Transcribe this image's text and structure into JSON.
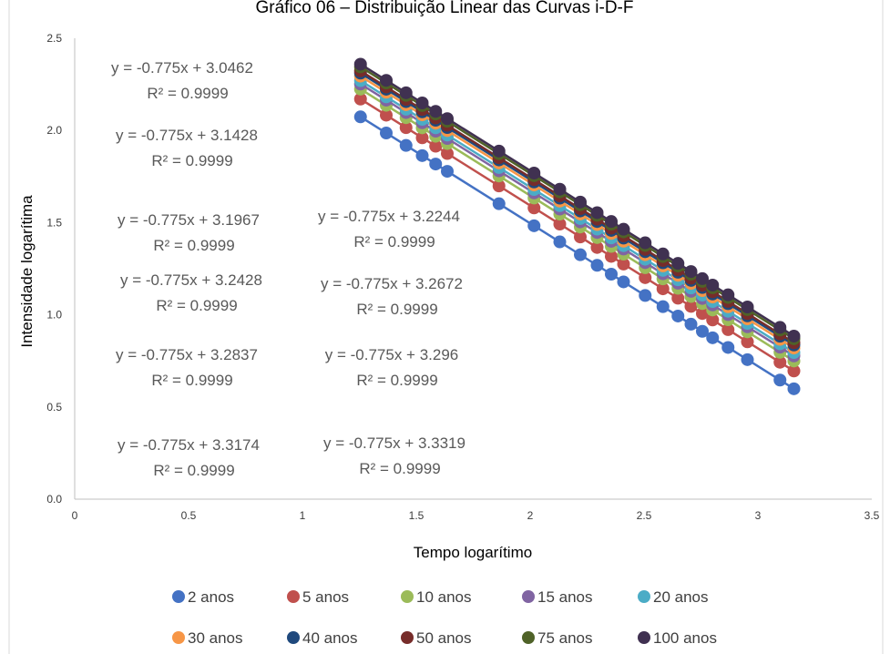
{
  "chart_data": {
    "type": "scatter",
    "title": "Gráfico 06 – Distribuição Linear das Curvas i-D-F",
    "xlabel": "Tempo logarítimo",
    "ylabel": "Intensidade logarítima",
    "xlim": [
      0,
      3.5
    ],
    "ylim": [
      0,
      2.5
    ],
    "x_ticks": [
      "0",
      "0.5",
      "1",
      "1.5",
      "2",
      "2.5",
      "3",
      "3.5"
    ],
    "y_ticks": [
      "0.0",
      "0.5",
      "1.0",
      "1.5",
      "2.0",
      "2.5"
    ],
    "grid": false,
    "legend_position": "bottom",
    "slope": -0.775,
    "x": [
      1.255,
      1.368,
      1.455,
      1.526,
      1.585,
      1.636,
      1.863,
      2.017,
      2.13,
      2.22,
      2.294,
      2.356,
      2.41,
      2.505,
      2.583,
      2.649,
      2.706,
      2.756,
      2.801,
      2.869,
      2.954,
      3.097,
      3.158
    ],
    "series": [
      {
        "name": "2 anos",
        "color": "#4472c4",
        "intercept": 3.0462,
        "equation": "y = -0.775x + 3.0462",
        "r2": "R² = 0.9999"
      },
      {
        "name": "5 anos",
        "color": "#c0504d",
        "intercept": 3.1428,
        "equation": "y = -0.775x + 3.1428",
        "r2": "R² = 0.9999"
      },
      {
        "name": "10 anos",
        "color": "#9bbb59",
        "intercept": 3.1967,
        "equation": "y = -0.775x + 3.1967",
        "r2": "R² = 0.9999"
      },
      {
        "name": "15 anos",
        "color": "#8064a2",
        "intercept": 3.2244,
        "equation": "y = -0.775x + 3.2244",
        "r2": "R² = 0.9999"
      },
      {
        "name": "20 anos",
        "color": "#4bacc6",
        "intercept": 3.2428,
        "equation": "y = -0.775x + 3.2428",
        "r2": "R² = 0.9999"
      },
      {
        "name": "30 anos",
        "color": "#f79646",
        "intercept": 3.2672,
        "equation": "y = -0.775x + 3.2672",
        "r2": "R² = 0.9999"
      },
      {
        "name": "40 anos",
        "color": "#1f497d",
        "intercept": 3.2837,
        "equation": "y = -0.775x + 3.2837",
        "r2": "R² = 0.9999"
      },
      {
        "name": "50 anos",
        "color": "#772c2a",
        "intercept": 3.296,
        "equation": "y = -0.775x + 3.296",
        "r2": "R² = 0.9999"
      },
      {
        "name": "75 anos",
        "color": "#4f6228",
        "intercept": 3.3174,
        "equation": "y = -0.775x + 3.3174",
        "r2": "R² = 0.9999"
      },
      {
        "name": "100 anos",
        "color": "#403151",
        "intercept": 3.3319,
        "equation": "y = -0.775x + 3.3319",
        "r2": "R² = 0.9999"
      }
    ]
  }
}
